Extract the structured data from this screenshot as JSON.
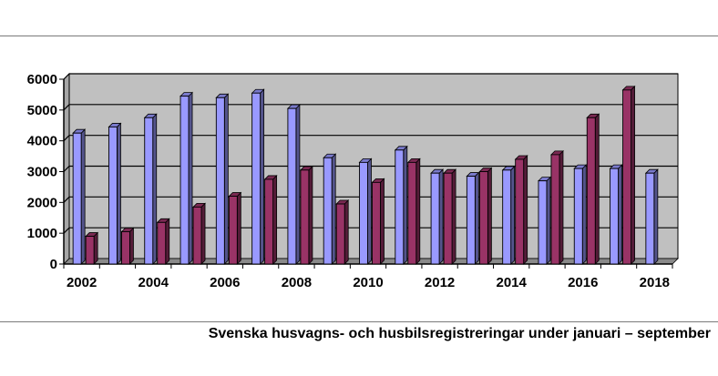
{
  "caption": "Svenska husvagns- och husbilsregistreringar under januari – september",
  "chart_data": {
    "type": "bar",
    "title": "",
    "xlabel": "",
    "ylabel": "",
    "ylim": [
      0,
      6000
    ],
    "yticks": [
      0,
      1000,
      2000,
      3000,
      4000,
      5000,
      6000
    ],
    "grid": true,
    "legend": "none",
    "categories": [
      "2002",
      "2003",
      "2004",
      "2005",
      "2006",
      "2007",
      "2008",
      "2009",
      "2010",
      "2011",
      "2012",
      "2013",
      "2014",
      "2015",
      "2016",
      "2017",
      "2018"
    ],
    "xtick_labels": [
      "2002",
      "2004",
      "2006",
      "2008",
      "2010",
      "2012",
      "2014",
      "2016",
      "2018"
    ],
    "series": [
      {
        "color": "#9999ff",
        "values": [
          4250,
          4450,
          4750,
          5450,
          5400,
          5550,
          5050,
          3450,
          3300,
          3700,
          2950,
          2850,
          3050,
          2700,
          3100,
          3100,
          2950
        ]
      },
      {
        "color": "#993366",
        "values": [
          900,
          1050,
          1350,
          1850,
          2200,
          2750,
          3050,
          1950,
          2650,
          3300,
          2950,
          3000,
          3400,
          3550,
          4750,
          5650,
          null
        ]
      }
    ],
    "plot_background": "#c0c0c0"
  }
}
